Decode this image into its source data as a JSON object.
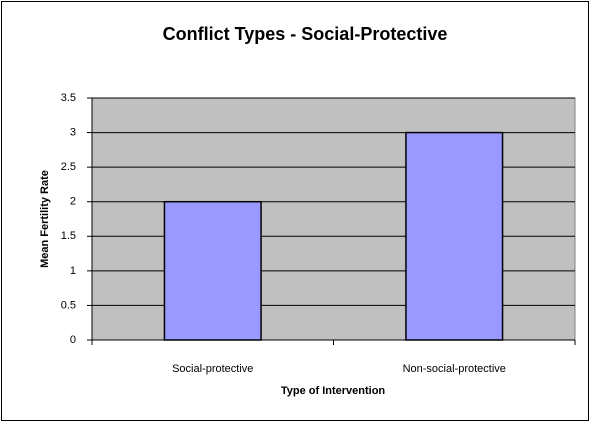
{
  "chart_data": {
    "type": "bar",
    "title": "Conflict Types - Social-Protective",
    "x_label": "Type of Intervention",
    "y_label": "Mean Fertility Rate",
    "categories": [
      "Social-protective",
      "Non-social-protective"
    ],
    "values": [
      2,
      3
    ],
    "color": "#9999ff",
    "ylim": [
      0,
      3.5
    ],
    "yticks": [
      0,
      0.5,
      1,
      1.5,
      2,
      2.5,
      3,
      3.5
    ],
    "grid": true
  }
}
